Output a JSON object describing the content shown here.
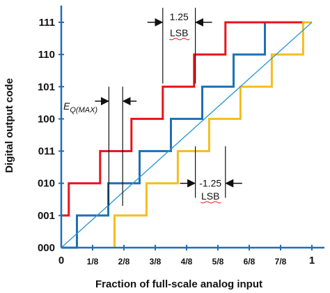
{
  "chart_data": {
    "type": "line",
    "title": "",
    "xlabel": "Fraction of full-scale analog input",
    "ylabel": "Digital output code",
    "xlim": [
      0,
      1
    ],
    "ylim": [
      0,
      7
    ],
    "x_ticks": [
      {
        "value": 0,
        "label": "0"
      },
      {
        "value": 0.125,
        "label": "1/8"
      },
      {
        "value": 0.25,
        "label": "2/8"
      },
      {
        "value": 0.375,
        "label": "3/8"
      },
      {
        "value": 0.5,
        "label": "4/8"
      },
      {
        "value": 0.625,
        "label": "5/8"
      },
      {
        "value": 0.75,
        "label": "6/8"
      },
      {
        "value": 0.875,
        "label": "7/8"
      },
      {
        "value": 1,
        "label": "1"
      }
    ],
    "y_ticks": [
      "000",
      "001",
      "010",
      "011",
      "100",
      "101",
      "110",
      "111"
    ],
    "grid": false,
    "series": [
      {
        "color": "#1f6fb5",
        "points": [
          [
            0,
            0
          ],
          [
            0.0625,
            0
          ],
          [
            0.0625,
            1
          ],
          [
            0.1875,
            1
          ],
          [
            0.1875,
            2
          ],
          [
            0.3125,
            2
          ],
          [
            0.3125,
            3
          ],
          [
            0.4375,
            3
          ],
          [
            0.4375,
            4
          ],
          [
            0.5625,
            4
          ],
          [
            0.5625,
            5
          ],
          [
            0.6875,
            5
          ],
          [
            0.6875,
            6
          ],
          [
            0.8125,
            6
          ],
          [
            0.8125,
            7
          ],
          [
            1,
            7
          ]
        ]
      },
      {
        "color": "#e8131b",
        "points": [
          [
            0,
            1
          ],
          [
            0,
            1.0
          ],
          [
            0.03,
            1
          ],
          [
            0.03,
            2
          ],
          [
            0.155,
            2
          ],
          [
            0.155,
            3
          ],
          [
            0.28,
            3
          ],
          [
            0.28,
            4
          ],
          [
            0.405,
            4
          ],
          [
            0.405,
            5
          ],
          [
            0.53,
            5
          ],
          [
            0.53,
            6
          ],
          [
            0.655,
            6
          ],
          [
            0.655,
            7
          ],
          [
            1,
            7
          ]
        ]
      },
      {
        "color": "#f5bd1f",
        "points": [
          [
            0.2125,
            0
          ],
          [
            0.2125,
            1
          ],
          [
            0.34,
            1
          ],
          [
            0.34,
            2
          ],
          [
            0.465,
            2
          ],
          [
            0.465,
            3
          ],
          [
            0.59,
            3
          ],
          [
            0.59,
            4
          ],
          [
            0.715,
            4
          ],
          [
            0.715,
            5
          ],
          [
            0.84,
            5
          ],
          [
            0.84,
            6
          ],
          [
            0.965,
            6
          ],
          [
            0.965,
            7
          ],
          [
            1,
            7
          ]
        ]
      },
      {
        "color": "#2e9bd6",
        "points": [
          [
            0,
            0
          ],
          [
            1,
            7
          ]
        ]
      }
    ],
    "annotations": [
      {
        "text_main": "E",
        "text_sub": "Q(MAX)",
        "lines_x": [
          0.19,
          0.245
        ],
        "y_range": [
          1.3,
          5.0
        ],
        "arrow_y": 4.55
      },
      {
        "text_line1": "1.25",
        "text_line2": "LSB",
        "lines_x": [
          0.405,
          0.535
        ],
        "y_range": [
          5.1,
          7.45
        ],
        "arrow_y": 7.0
      },
      {
        "text_line1": "-1.25",
        "text_line2": "LSB",
        "lines_x": [
          0.535,
          0.655
        ],
        "y_range": [
          1.55,
          3.15
        ],
        "arrow_y": 2.0
      }
    ]
  }
}
